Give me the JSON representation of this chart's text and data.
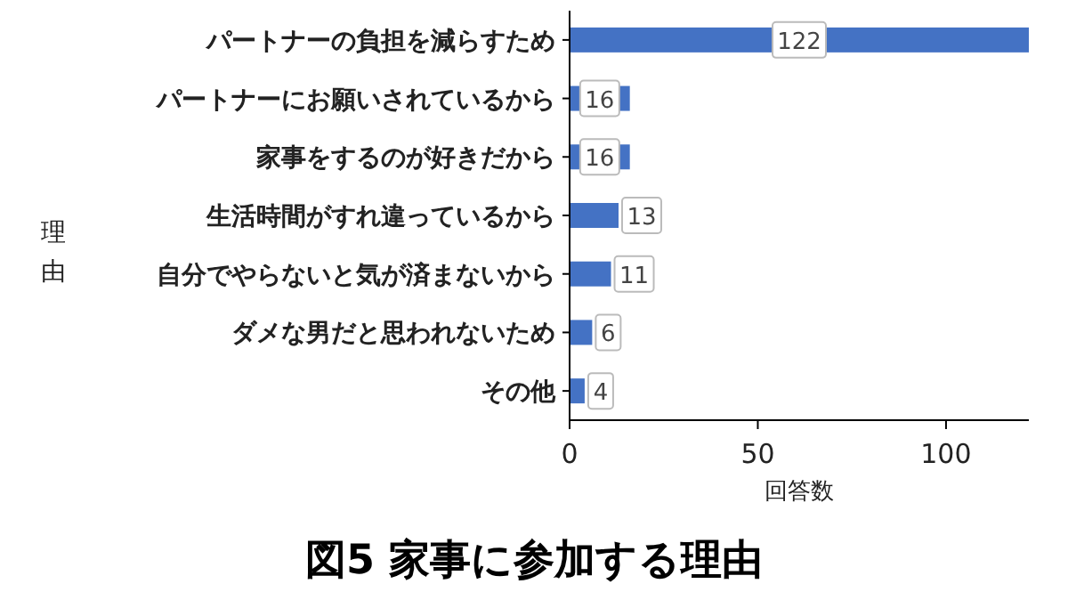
{
  "chart_data": {
    "type": "bar",
    "orientation": "horizontal",
    "title": "図5 家事に参加する理由",
    "xlabel": "回答数",
    "ylabel": "理由",
    "categories": [
      "パートナーの負担を減らすため",
      "パートナーにお願いされているから",
      "家事をするのが好きだから",
      "生活時間がすれ違っているから",
      "自分でやらないと気が済まないから",
      "ダメな男だと思われないため",
      "その他"
    ],
    "values": [
      122,
      16,
      16,
      13,
      11,
      6,
      4
    ],
    "color": "#4472c4",
    "xlim": [
      0,
      122
    ],
    "xticks": [
      0,
      50,
      100
    ],
    "data_labels": true,
    "grid": false
  }
}
